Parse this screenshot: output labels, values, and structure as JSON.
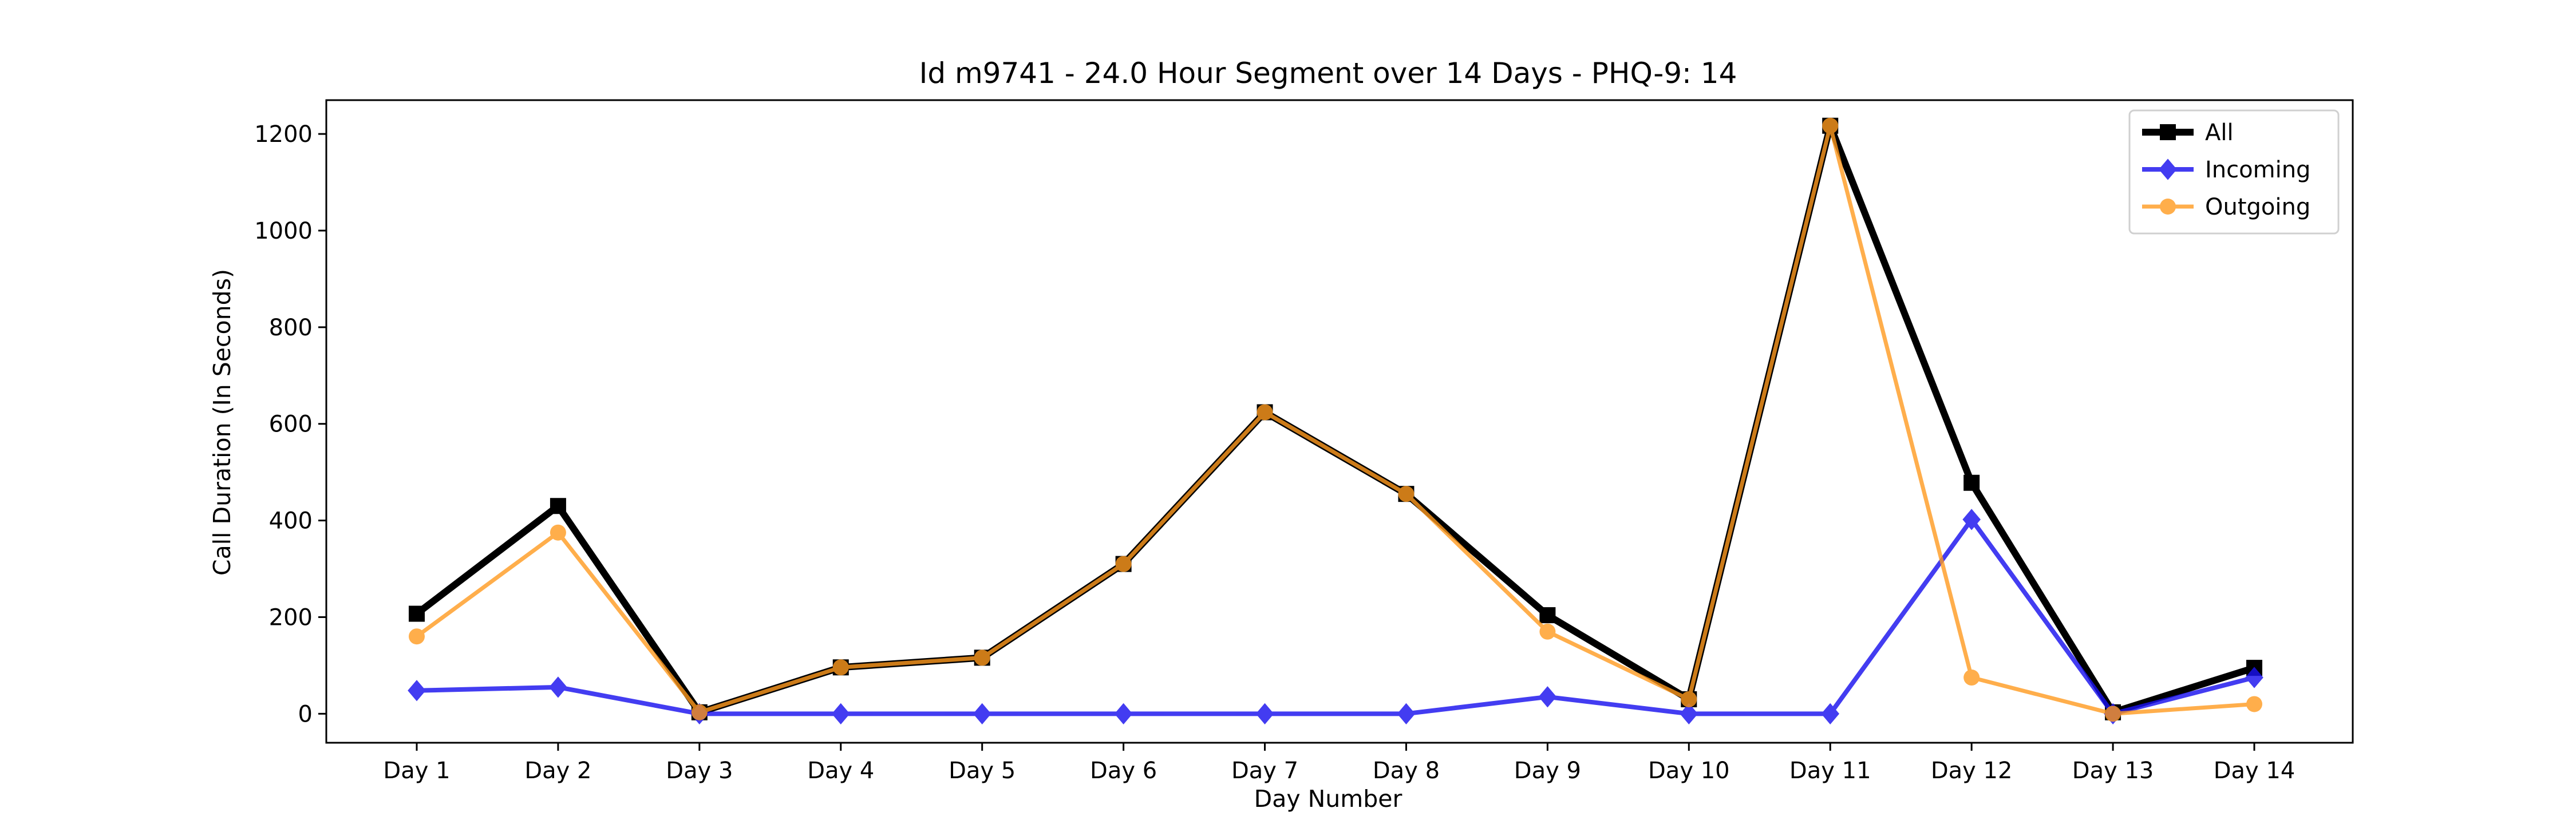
{
  "chart_data": {
    "type": "line",
    "title": "Id m9741 - 24.0 Hour Segment over 14 Days - PHQ-9: 14",
    "xlabel": "Day Number",
    "ylabel": "Call Duration (In Seconds)",
    "categories": [
      "Day 1",
      "Day 2",
      "Day 3",
      "Day 4",
      "Day 5",
      "Day 6",
      "Day 7",
      "Day 8",
      "Day 9",
      "Day 10",
      "Day 11",
      "Day 12",
      "Day 13",
      "Day 14"
    ],
    "ylim": [
      -60,
      1270
    ],
    "yticks": [
      0,
      200,
      400,
      600,
      800,
      1000,
      1200
    ],
    "grid": false,
    "legend_position": "top-right",
    "series": [
      {
        "name": "All",
        "color": "#000000",
        "marker": "square",
        "values": [
          207,
          430,
          3,
          96,
          116,
          310,
          624,
          455,
          204,
          30,
          1217,
          478,
          3,
          95
        ]
      },
      {
        "name": "Incoming",
        "color": "#1a12ee",
        "marker": "diamond",
        "values": [
          48,
          55,
          0,
          0,
          0,
          0,
          0,
          0,
          35,
          0,
          0,
          402,
          0,
          75
        ]
      },
      {
        "name": "Outgoing",
        "color": "#ff9a1f",
        "marker": "circle",
        "values": [
          160,
          375,
          3,
          96,
          116,
          310,
          624,
          455,
          170,
          30,
          1217,
          75,
          0,
          20
        ]
      }
    ]
  }
}
